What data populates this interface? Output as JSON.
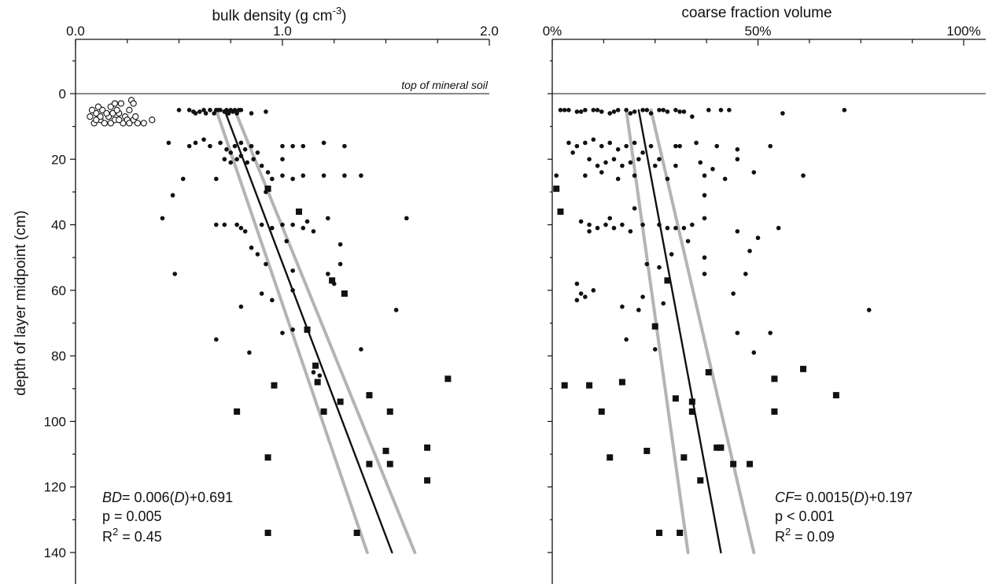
{
  "colors": {
    "ink": "#111111",
    "band": "#b4b4b4",
    "paper": "#ffffff"
  },
  "shared": {
    "ylabel": "depth of layer midpoint (cm)",
    "y_ticks": [
      "0",
      "20",
      "40",
      "60",
      "80",
      "100",
      "120",
      "140"
    ],
    "ylim": [
      -10,
      148
    ],
    "y_inverted": true,
    "grid": false
  },
  "chart_data": [
    {
      "type": "scatter",
      "title_main": "bulk density (g cm",
      "title_exp": "-3",
      "title_close": ")",
      "xlim": [
        0,
        2
      ],
      "x_ticks": [
        "0.0",
        "1.0",
        "2.0"
      ],
      "x_tick_values": [
        0,
        1,
        2
      ],
      "ref_line_label": "top of mineral soil",
      "equation": {
        "sym": "BD",
        "mid": "= 0.006(",
        "var": "D",
        "tail": ")+0.691"
      },
      "p_text": "p = 0.005",
      "r2_text": "R",
      "r2_exp": "2",
      "r2_val": " = 0.45",
      "organic_points": [
        [
          0.07,
          7
        ],
        [
          0.1,
          6
        ],
        [
          0.12,
          8
        ],
        [
          0.13,
          5
        ],
        [
          0.16,
          7
        ],
        [
          0.17,
          4
        ],
        [
          0.19,
          8
        ],
        [
          0.21,
          6
        ],
        [
          0.22,
          3
        ],
        [
          0.24,
          7
        ],
        [
          0.26,
          5
        ],
        [
          0.27,
          2
        ],
        [
          0.28,
          8
        ],
        [
          0.09,
          9
        ],
        [
          0.11,
          4
        ],
        [
          0.14,
          9
        ],
        [
          0.18,
          6
        ],
        [
          0.2,
          5
        ],
        [
          0.23,
          9
        ],
        [
          0.25,
          8
        ],
        [
          0.29,
          7
        ],
        [
          0.3,
          9
        ],
        [
          0.33,
          9
        ],
        [
          0.37,
          8
        ],
        [
          0.15,
          6
        ],
        [
          0.08,
          5
        ],
        [
          0.12,
          7
        ],
        [
          0.17,
          9
        ],
        [
          0.21,
          8
        ],
        [
          0.26,
          9
        ],
        [
          0.28,
          3
        ],
        [
          0.19,
          3
        ],
        [
          0.1,
          8
        ]
      ],
      "small_points": [
        [
          0.5,
          5
        ],
        [
          0.55,
          5
        ],
        [
          0.58,
          6
        ],
        [
          0.6,
          5.5
        ],
        [
          0.62,
          5
        ],
        [
          0.65,
          5
        ],
        [
          0.67,
          6
        ],
        [
          0.68,
          5
        ],
        [
          0.7,
          5
        ],
        [
          0.72,
          5.5
        ],
        [
          0.74,
          6
        ],
        [
          0.75,
          5
        ],
        [
          0.77,
          5
        ],
        [
          0.78,
          6
        ],
        [
          0.8,
          5
        ],
        [
          0.57,
          5.5
        ],
        [
          0.63,
          6
        ],
        [
          0.69,
          5
        ],
        [
          0.73,
          5
        ],
        [
          0.76,
          5.5
        ],
        [
          0.79,
          5
        ],
        [
          0.85,
          6
        ],
        [
          0.92,
          5.5
        ],
        [
          0.58,
          15
        ],
        [
          0.62,
          14
        ],
        [
          0.65,
          16
        ],
        [
          0.7,
          15
        ],
        [
          0.73,
          17
        ],
        [
          0.75,
          18
        ],
        [
          0.77,
          16
        ],
        [
          0.8,
          15
        ],
        [
          0.82,
          17
        ],
        [
          0.85,
          16
        ],
        [
          0.88,
          18
        ],
        [
          0.72,
          20
        ],
        [
          0.75,
          21
        ],
        [
          0.78,
          20
        ],
        [
          0.8,
          19
        ],
        [
          0.83,
          21
        ],
        [
          0.86,
          20
        ],
        [
          0.9,
          22
        ],
        [
          0.93,
          24
        ],
        [
          0.95,
          26
        ],
        [
          1.0,
          25
        ],
        [
          1.05,
          26
        ],
        [
          1.1,
          25
        ],
        [
          1.2,
          25
        ],
        [
          1.3,
          25
        ],
        [
          1.38,
          25
        ],
        [
          1.0,
          16
        ],
        [
          1.05,
          16
        ],
        [
          1.1,
          16
        ],
        [
          1.2,
          15
        ],
        [
          1.3,
          16
        ],
        [
          0.45,
          15
        ],
        [
          0.55,
          16
        ],
        [
          0.52,
          26
        ],
        [
          0.47,
          31
        ],
        [
          1.22,
          38
        ],
        [
          0.42,
          38
        ],
        [
          1.6,
          38
        ],
        [
          1.08,
          36
        ],
        [
          0.68,
          40
        ],
        [
          0.72,
          40
        ],
        [
          0.78,
          40
        ],
        [
          0.8,
          41
        ],
        [
          0.82,
          42
        ],
        [
          0.9,
          40
        ],
        [
          0.95,
          41
        ],
        [
          1.0,
          40
        ],
        [
          1.05,
          40
        ],
        [
          1.1,
          41
        ],
        [
          1.12,
          39
        ],
        [
          1.15,
          42
        ],
        [
          1.28,
          46
        ],
        [
          0.85,
          47
        ],
        [
          0.88,
          49
        ],
        [
          0.92,
          52
        ],
        [
          1.28,
          52
        ],
        [
          1.05,
          54
        ],
        [
          1.22,
          55
        ],
        [
          0.48,
          55
        ],
        [
          1.25,
          58
        ],
        [
          0.9,
          61
        ],
        [
          0.95,
          63
        ],
        [
          1.05,
          60
        ],
        [
          0.8,
          65
        ],
        [
          1.55,
          66
        ],
        [
          1.0,
          73
        ],
        [
          1.05,
          72
        ],
        [
          0.68,
          75
        ],
        [
          1.38,
          78
        ],
        [
          0.84,
          79
        ],
        [
          1.15,
          85
        ],
        [
          1.18,
          86
        ],
        [
          1.0,
          20
        ],
        [
          0.68,
          26
        ],
        [
          0.92,
          30
        ],
        [
          1.02,
          45
        ]
      ],
      "large_points": [
        [
          0.93,
          29
        ],
        [
          1.08,
          36
        ],
        [
          1.24,
          57
        ],
        [
          1.3,
          61
        ],
        [
          1.12,
          72
        ],
        [
          1.16,
          83
        ],
        [
          1.17,
          88
        ],
        [
          1.8,
          87
        ],
        [
          0.96,
          89
        ],
        [
          1.42,
          92
        ],
        [
          1.28,
          94
        ],
        [
          1.52,
          97
        ],
        [
          1.2,
          97
        ],
        [
          0.78,
          97
        ],
        [
          1.5,
          109
        ],
        [
          1.7,
          108
        ],
        [
          1.42,
          113
        ],
        [
          1.52,
          113
        ],
        [
          0.93,
          111
        ],
        [
          1.7,
          118
        ],
        [
          0.93,
          134
        ],
        [
          1.36,
          134
        ]
      ],
      "fit_line": [
        [
          0.72,
          5
        ],
        [
          1.53,
          140
        ]
      ],
      "band_low": [
        [
          0.68,
          5
        ],
        [
          1.41,
          140
        ]
      ],
      "band_high": [
        [
          0.77,
          5
        ],
        [
          1.64,
          140
        ]
      ]
    },
    {
      "type": "scatter",
      "title_main": "coarse fraction volume",
      "xlim": [
        0,
        100
      ],
      "x_ticks": [
        "0%",
        "50%",
        "100%"
      ],
      "x_tick_values": [
        0,
        50,
        100
      ],
      "equation": {
        "sym": "CF",
        "mid": "= 0.0015(",
        "var": "D",
        "tail": ")+0.197"
      },
      "p_text": "p < 0.001",
      "r2_text": "R",
      "r2_exp": "2",
      "r2_val": " = 0.09",
      "small_points": [
        [
          2,
          5
        ],
        [
          4,
          5
        ],
        [
          6,
          5.5
        ],
        [
          8,
          5
        ],
        [
          10,
          5
        ],
        [
          12,
          5.5
        ],
        [
          14,
          6
        ],
        [
          16,
          5
        ],
        [
          18,
          5
        ],
        [
          20,
          5.5
        ],
        [
          22,
          5
        ],
        [
          24,
          6
        ],
        [
          26,
          5
        ],
        [
          28,
          5.5
        ],
        [
          30,
          5
        ],
        [
          32,
          5.5
        ],
        [
          34,
          7
        ],
        [
          38,
          5
        ],
        [
          41,
          5
        ],
        [
          43,
          5
        ],
        [
          56,
          6
        ],
        [
          71,
          5
        ],
        [
          3,
          5
        ],
        [
          7,
          5.5
        ],
        [
          11,
          5
        ],
        [
          15,
          5.5
        ],
        [
          19,
          6
        ],
        [
          23,
          5
        ],
        [
          27,
          5
        ],
        [
          31,
          5.5
        ],
        [
          4,
          15
        ],
        [
          6,
          16
        ],
        [
          8,
          15
        ],
        [
          10,
          14
        ],
        [
          12,
          16
        ],
        [
          14,
          15
        ],
        [
          16,
          17
        ],
        [
          18,
          16
        ],
        [
          20,
          15
        ],
        [
          22,
          18
        ],
        [
          24,
          16
        ],
        [
          26,
          20
        ],
        [
          30,
          16
        ],
        [
          35,
          15
        ],
        [
          40,
          16
        ],
        [
          45,
          17
        ],
        [
          53,
          16
        ],
        [
          5,
          18
        ],
        [
          9,
          20
        ],
        [
          11,
          22
        ],
        [
          13,
          21
        ],
        [
          15,
          20
        ],
        [
          17,
          22
        ],
        [
          19,
          21
        ],
        [
          21,
          20
        ],
        [
          25,
          22
        ],
        [
          30,
          22
        ],
        [
          36,
          21
        ],
        [
          45,
          20
        ],
        [
          1,
          25
        ],
        [
          8,
          25
        ],
        [
          12,
          24
        ],
        [
          16,
          26
        ],
        [
          20,
          25
        ],
        [
          28,
          26
        ],
        [
          37,
          25
        ],
        [
          42,
          26
        ],
        [
          49,
          24
        ],
        [
          61,
          25
        ],
        [
          37,
          31
        ],
        [
          20,
          35
        ],
        [
          37,
          38
        ],
        [
          7,
          39
        ],
        [
          9,
          40
        ],
        [
          11,
          41
        ],
        [
          13,
          40
        ],
        [
          15,
          41
        ],
        [
          17,
          40
        ],
        [
          19,
          42
        ],
        [
          22,
          40
        ],
        [
          26,
          40
        ],
        [
          28,
          41
        ],
        [
          30,
          41
        ],
        [
          32,
          41
        ],
        [
          34,
          40
        ],
        [
          45,
          42
        ],
        [
          50,
          44
        ],
        [
          55,
          41
        ],
        [
          33,
          45
        ],
        [
          29,
          49
        ],
        [
          48,
          48
        ],
        [
          37,
          50
        ],
        [
          23,
          52
        ],
        [
          26,
          53
        ],
        [
          47,
          55
        ],
        [
          37,
          55
        ],
        [
          6,
          58
        ],
        [
          7,
          61
        ],
        [
          8,
          62
        ],
        [
          6,
          63
        ],
        [
          44,
          61
        ],
        [
          22,
          62
        ],
        [
          27,
          64
        ],
        [
          17,
          65
        ],
        [
          21,
          66
        ],
        [
          77,
          66
        ],
        [
          45,
          73
        ],
        [
          53,
          73
        ],
        [
          18,
          75
        ],
        [
          49,
          79
        ],
        [
          25,
          78
        ],
        [
          9,
          42
        ],
        [
          14,
          38
        ],
        [
          31,
          16
        ],
        [
          39,
          23
        ],
        [
          10,
          60
        ]
      ],
      "large_points": [
        [
          1,
          29
        ],
        [
          2,
          36
        ],
        [
          28,
          57
        ],
        [
          25,
          71
        ],
        [
          38,
          85
        ],
        [
          61,
          84
        ],
        [
          54,
          87
        ],
        [
          69,
          92
        ],
        [
          9,
          89
        ],
        [
          17,
          88
        ],
        [
          30,
          93
        ],
        [
          34,
          94
        ],
        [
          34,
          97
        ],
        [
          12,
          97
        ],
        [
          54,
          97
        ],
        [
          41,
          108
        ],
        [
          44,
          113
        ],
        [
          48,
          113
        ],
        [
          32,
          111
        ],
        [
          40,
          108
        ],
        [
          36,
          118
        ],
        [
          26,
          134
        ],
        [
          31,
          134
        ],
        [
          23,
          109
        ],
        [
          14,
          111
        ],
        [
          3,
          89
        ]
      ],
      "fit_line": [
        [
          21,
          5
        ],
        [
          41,
          140
        ]
      ],
      "band_low": [
        [
          18,
          5
        ],
        [
          33,
          140
        ]
      ],
      "band_high": [
        [
          24,
          5
        ],
        [
          49,
          140
        ]
      ]
    }
  ]
}
